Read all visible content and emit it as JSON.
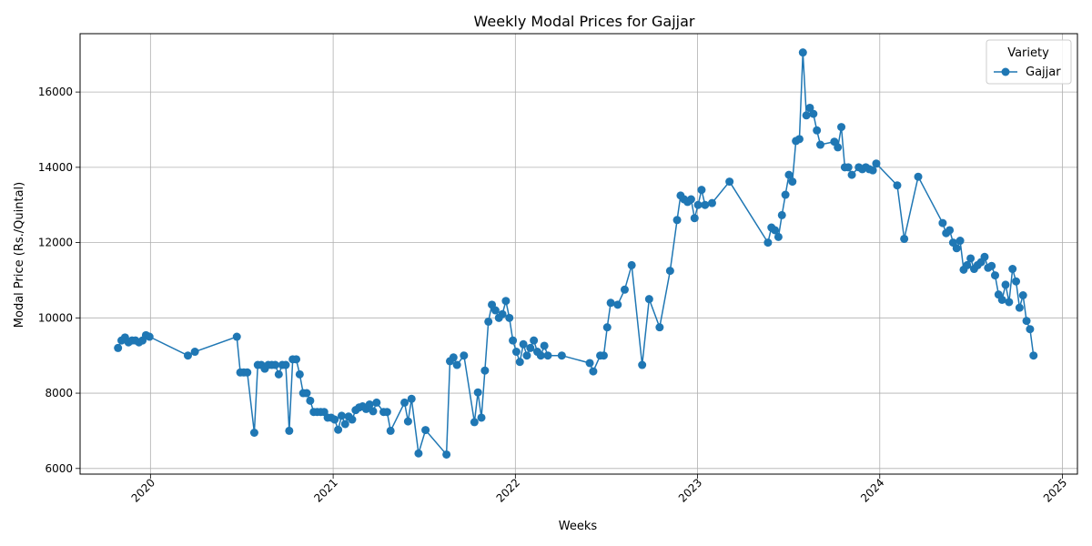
{
  "chart_data": {
    "type": "line",
    "title": "Weekly Modal Prices for Gajjar",
    "xlabel": "Weeks",
    "ylabel": "Modal Price (Rs./Quintal)",
    "x_range": [
      "2019-08-13",
      "2025-01-31"
    ],
    "y_range": [
      5850,
      17550
    ],
    "x_ticks": [
      {
        "date": "2020-01-01",
        "label": "2020"
      },
      {
        "date": "2021-01-01",
        "label": "2021"
      },
      {
        "date": "2022-01-01",
        "label": "2022"
      },
      {
        "date": "2023-01-01",
        "label": "2023"
      },
      {
        "date": "2024-01-01",
        "label": "2024"
      },
      {
        "date": "2025-01-01",
        "label": "2025"
      }
    ],
    "y_ticks": [
      6000,
      8000,
      10000,
      12000,
      14000,
      16000
    ],
    "grid": true,
    "legend": {
      "title": "Variety",
      "position": "top-right"
    },
    "series": [
      {
        "name": "Gajjar",
        "color": "#1f77b4",
        "marker": "circle",
        "points": [
          [
            "2019-10-28",
            9200
          ],
          [
            "2019-11-04",
            9400
          ],
          [
            "2019-11-11",
            9480
          ],
          [
            "2019-11-18",
            9350
          ],
          [
            "2019-11-25",
            9400
          ],
          [
            "2019-12-02",
            9400
          ],
          [
            "2019-12-09",
            9350
          ],
          [
            "2019-12-16",
            9400
          ],
          [
            "2019-12-23",
            9540
          ],
          [
            "2019-12-30",
            9500
          ],
          [
            "2020-03-16",
            9000
          ],
          [
            "2020-03-30",
            9100
          ],
          [
            "2020-06-22",
            9500
          ],
          [
            "2020-06-29",
            8550
          ],
          [
            "2020-07-06",
            8550
          ],
          [
            "2020-07-13",
            8550
          ],
          [
            "2020-07-27",
            6950
          ],
          [
            "2020-08-03",
            8750
          ],
          [
            "2020-08-10",
            8750
          ],
          [
            "2020-08-17",
            8650
          ],
          [
            "2020-08-24",
            8750
          ],
          [
            "2020-08-31",
            8750
          ],
          [
            "2020-09-07",
            8750
          ],
          [
            "2020-09-14",
            8500
          ],
          [
            "2020-09-21",
            8750
          ],
          [
            "2020-09-28",
            8750
          ],
          [
            "2020-10-05",
            7000
          ],
          [
            "2020-10-12",
            8900
          ],
          [
            "2020-10-19",
            8900
          ],
          [
            "2020-10-26",
            8500
          ],
          [
            "2020-11-02",
            8000
          ],
          [
            "2020-11-09",
            8000
          ],
          [
            "2020-11-16",
            7800
          ],
          [
            "2020-11-23",
            7500
          ],
          [
            "2020-11-30",
            7500
          ],
          [
            "2020-12-07",
            7500
          ],
          [
            "2020-12-14",
            7500
          ],
          [
            "2020-12-21",
            7350
          ],
          [
            "2020-12-28",
            7350
          ],
          [
            "2021-01-04",
            7300
          ],
          [
            "2021-01-11",
            7030
          ],
          [
            "2021-01-18",
            7400
          ],
          [
            "2021-01-25",
            7180
          ],
          [
            "2021-02-01",
            7380
          ],
          [
            "2021-02-08",
            7300
          ],
          [
            "2021-02-15",
            7550
          ],
          [
            "2021-02-22",
            7620
          ],
          [
            "2021-03-01",
            7650
          ],
          [
            "2021-03-08",
            7580
          ],
          [
            "2021-03-15",
            7700
          ],
          [
            "2021-03-22",
            7520
          ],
          [
            "2021-03-29",
            7750
          ],
          [
            "2021-04-12",
            7500
          ],
          [
            "2021-04-19",
            7500
          ],
          [
            "2021-04-26",
            7000
          ],
          [
            "2021-05-24",
            7750
          ],
          [
            "2021-05-31",
            7250
          ],
          [
            "2021-06-07",
            7850
          ],
          [
            "2021-06-21",
            6400
          ],
          [
            "2021-07-05",
            7020
          ],
          [
            "2021-08-16",
            6370
          ],
          [
            "2021-08-23",
            8850
          ],
          [
            "2021-08-30",
            8950
          ],
          [
            "2021-09-06",
            8750
          ],
          [
            "2021-09-20",
            9000
          ],
          [
            "2021-10-11",
            7230
          ],
          [
            "2021-10-18",
            8020
          ],
          [
            "2021-10-25",
            7350
          ],
          [
            "2021-11-01",
            8600
          ],
          [
            "2021-11-08",
            9900
          ],
          [
            "2021-11-15",
            10350
          ],
          [
            "2021-11-22",
            10200
          ],
          [
            "2021-11-29",
            10000
          ],
          [
            "2021-12-06",
            10100
          ],
          [
            "2021-12-13",
            10450
          ],
          [
            "2021-12-20",
            10000
          ],
          [
            "2021-12-27",
            9400
          ],
          [
            "2022-01-03",
            9100
          ],
          [
            "2022-01-10",
            8830
          ],
          [
            "2022-01-17",
            9300
          ],
          [
            "2022-01-24",
            9000
          ],
          [
            "2022-01-31",
            9200
          ],
          [
            "2022-02-07",
            9400
          ],
          [
            "2022-02-14",
            9100
          ],
          [
            "2022-02-21",
            9000
          ],
          [
            "2022-02-28",
            9260
          ],
          [
            "2022-03-07",
            9000
          ],
          [
            "2022-04-04",
            9000
          ],
          [
            "2022-05-30",
            8800
          ],
          [
            "2022-06-06",
            8580
          ],
          [
            "2022-06-20",
            9000
          ],
          [
            "2022-06-27",
            9000
          ],
          [
            "2022-07-04",
            9750
          ],
          [
            "2022-07-11",
            10400
          ],
          [
            "2022-07-25",
            10350
          ],
          [
            "2022-08-08",
            10750
          ],
          [
            "2022-08-22",
            11400
          ],
          [
            "2022-09-12",
            8750
          ],
          [
            "2022-09-26",
            10500
          ],
          [
            "2022-10-17",
            9750
          ],
          [
            "2022-11-07",
            11250
          ],
          [
            "2022-11-21",
            12600
          ],
          [
            "2022-11-28",
            13250
          ],
          [
            "2022-12-05",
            13150
          ],
          [
            "2022-12-12",
            13080
          ],
          [
            "2022-12-19",
            13150
          ],
          [
            "2022-12-26",
            12650
          ],
          [
            "2023-01-02",
            13000
          ],
          [
            "2023-01-09",
            13400
          ],
          [
            "2023-01-16",
            13000
          ],
          [
            "2023-01-30",
            13050
          ],
          [
            "2023-03-06",
            13620
          ],
          [
            "2023-05-22",
            12000
          ],
          [
            "2023-05-29",
            12400
          ],
          [
            "2023-06-05",
            12330
          ],
          [
            "2023-06-12",
            12150
          ],
          [
            "2023-06-19",
            12730
          ],
          [
            "2023-06-26",
            13270
          ],
          [
            "2023-07-03",
            13800
          ],
          [
            "2023-07-10",
            13620
          ],
          [
            "2023-07-17",
            14700
          ],
          [
            "2023-07-24",
            14750
          ],
          [
            "2023-07-31",
            17050
          ],
          [
            "2023-08-07",
            15380
          ],
          [
            "2023-08-14",
            15580
          ],
          [
            "2023-08-21",
            15420
          ],
          [
            "2023-08-28",
            14980
          ],
          [
            "2023-09-04",
            14600
          ],
          [
            "2023-10-02",
            14680
          ],
          [
            "2023-10-09",
            14530
          ],
          [
            "2023-10-16",
            15070
          ],
          [
            "2023-10-23",
            14000
          ],
          [
            "2023-10-30",
            14000
          ],
          [
            "2023-11-06",
            13800
          ],
          [
            "2023-11-20",
            14000
          ],
          [
            "2023-11-27",
            13950
          ],
          [
            "2023-12-04",
            14000
          ],
          [
            "2023-12-11",
            13950
          ],
          [
            "2023-12-18",
            13920
          ],
          [
            "2023-12-25",
            14100
          ],
          [
            "2024-02-05",
            13520
          ],
          [
            "2024-02-19",
            12100
          ],
          [
            "2024-03-18",
            13750
          ],
          [
            "2024-05-06",
            12520
          ],
          [
            "2024-05-13",
            12250
          ],
          [
            "2024-05-20",
            12330
          ],
          [
            "2024-05-27",
            12000
          ],
          [
            "2024-06-03",
            11850
          ],
          [
            "2024-06-10",
            12050
          ],
          [
            "2024-06-17",
            11280
          ],
          [
            "2024-06-24",
            11400
          ],
          [
            "2024-07-01",
            11580
          ],
          [
            "2024-07-08",
            11300
          ],
          [
            "2024-07-15",
            11400
          ],
          [
            "2024-07-22",
            11480
          ],
          [
            "2024-07-29",
            11620
          ],
          [
            "2024-08-05",
            11330
          ],
          [
            "2024-08-12",
            11380
          ],
          [
            "2024-08-19",
            11130
          ],
          [
            "2024-08-26",
            10620
          ],
          [
            "2024-09-02",
            10480
          ],
          [
            "2024-09-09",
            10880
          ],
          [
            "2024-09-16",
            10420
          ],
          [
            "2024-09-23",
            11300
          ],
          [
            "2024-09-30",
            10970
          ],
          [
            "2024-10-07",
            10270
          ],
          [
            "2024-10-14",
            10600
          ],
          [
            "2024-10-21",
            9920
          ],
          [
            "2024-10-28",
            9700
          ],
          [
            "2024-11-04",
            9000
          ]
        ]
      }
    ]
  }
}
